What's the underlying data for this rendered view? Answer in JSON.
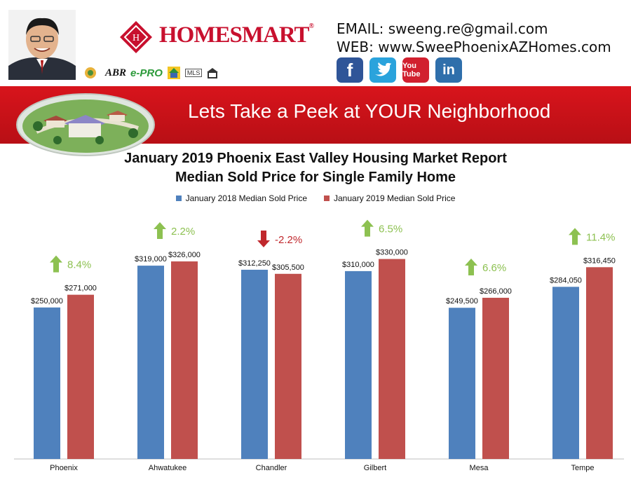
{
  "header": {
    "brand_name": "HOMESMART",
    "brand_trademark": "®",
    "certifications": [
      "ABR",
      "e-PRO",
      "MLS"
    ],
    "email_line": "EMAIL: sweeng.re@gmail.com",
    "web_line": "WEB: www.SweePhoenixAZHomes.com",
    "social": [
      {
        "name": "facebook",
        "label": "f",
        "color": "#2f5598"
      },
      {
        "name": "twitter",
        "label": "🐦",
        "color": "#2aa3dc"
      },
      {
        "name": "youtube",
        "label": "You Tube",
        "color": "#d1202f"
      },
      {
        "name": "linkedin",
        "label": "in",
        "color": "#2f6fab"
      }
    ]
  },
  "banner": {
    "title": "Lets Take a Peek at YOUR Neighborhood",
    "color": "#c8101a"
  },
  "chart_data": {
    "type": "bar",
    "title": "January 2019 Phoenix East Valley Housing Market Report",
    "subtitle": "Median Sold Price for Single Family Home",
    "xlabel": "",
    "ylabel": "",
    "categories": [
      "Phoenix",
      "Ahwatukee",
      "Chandler",
      "Gilbert",
      "Mesa",
      "Tempe"
    ],
    "series": [
      {
        "name": "January 2018 Median Sold Price",
        "color": "#4f81bd",
        "values": [
          250000,
          319000,
          312250,
          310000,
          249500,
          284050
        ],
        "labels": [
          "$250,000",
          "$319,000",
          "$312,250",
          "$310,000",
          "$249,500",
          "$284,050"
        ]
      },
      {
        "name": "January 2019 Median Sold Price",
        "color": "#c0504d",
        "values": [
          271000,
          326000,
          305500,
          330000,
          266000,
          316450
        ],
        "labels": [
          "$271,000",
          "$326,000",
          "$305,500",
          "$330,000",
          "$266,000",
          "$316,450"
        ]
      }
    ],
    "changes": [
      "8.4%",
      "2.2%",
      "-2.2%",
      "6.5%",
      "6.6%",
      "11.4%"
    ],
    "change_direction": [
      "up",
      "up",
      "down",
      "up",
      "up",
      "up"
    ],
    "up_color": "#8dc151",
    "down_color": "#c0282d",
    "ylim": [
      0,
      370000
    ],
    "grid": false,
    "legend_position": "top"
  }
}
